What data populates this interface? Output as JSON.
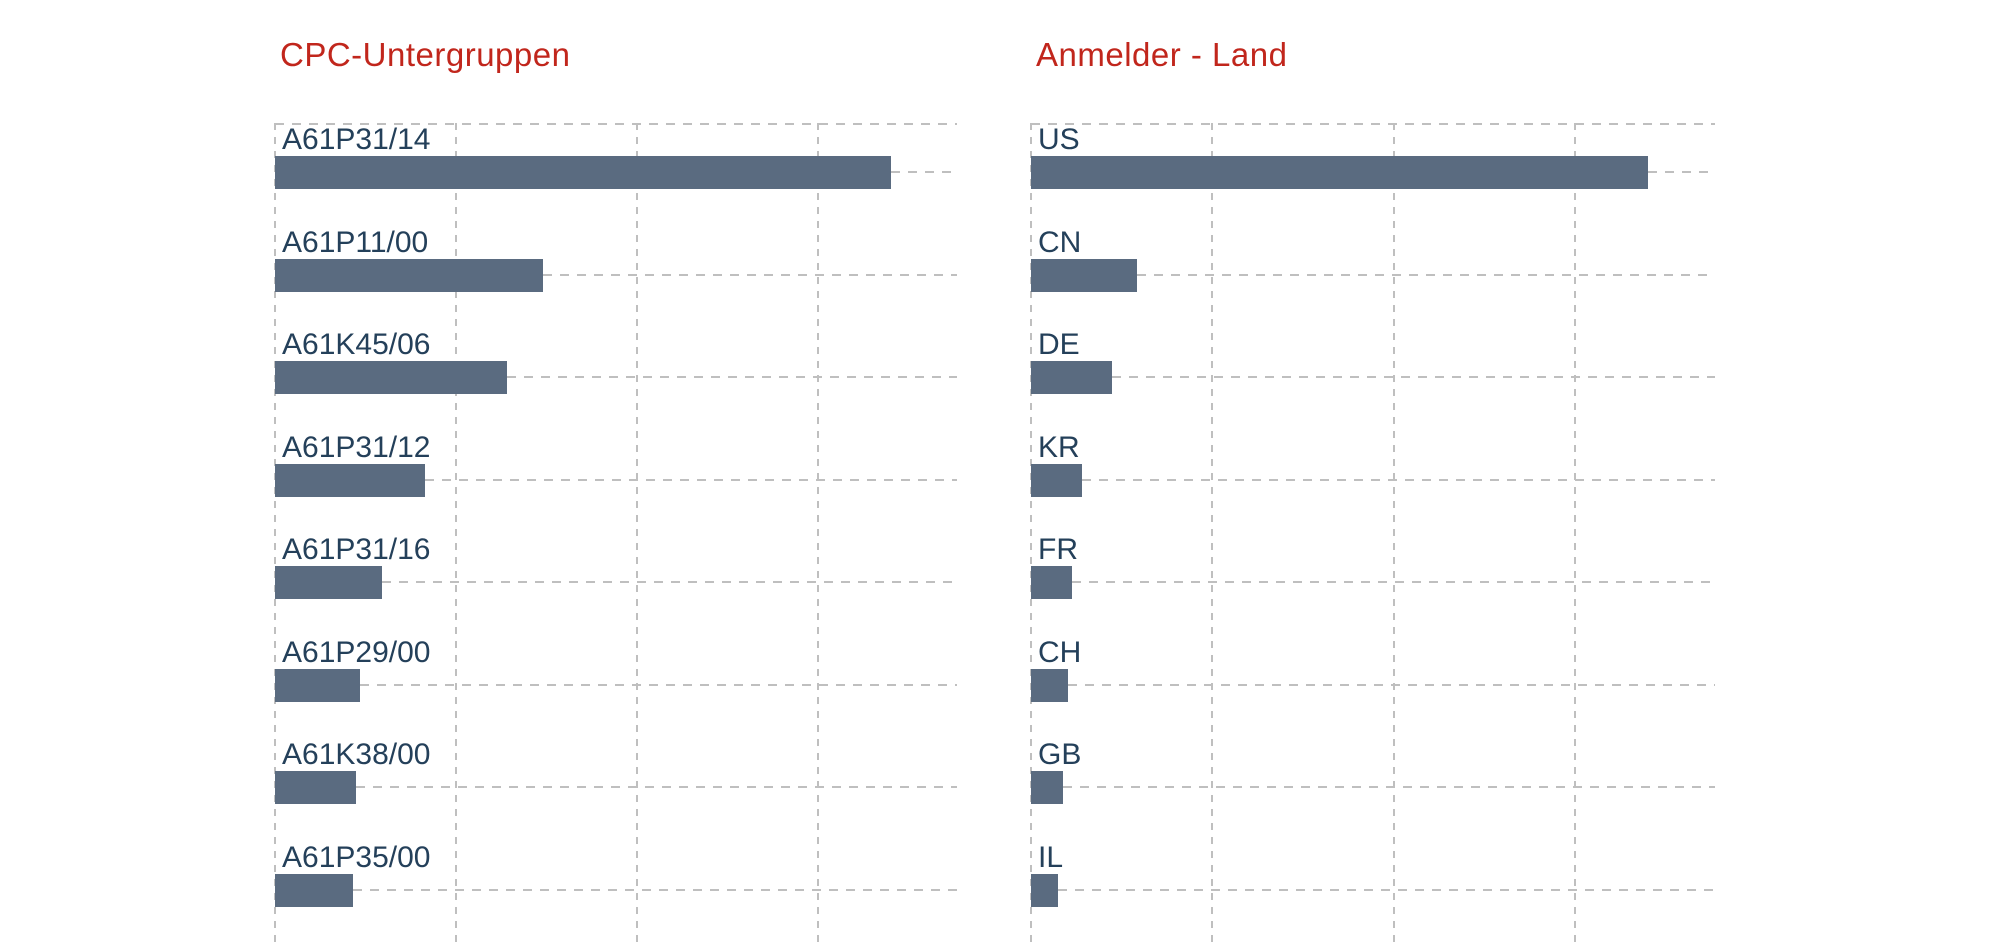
{
  "page": {
    "background_color": "#ffffff",
    "bar_color": "#5a6b80",
    "gridline_color": "#bfbfbf",
    "category_label_color": "#24405a"
  },
  "chart_data": [
    {
      "type": "bar",
      "orientation": "horizontal",
      "title": "CPC-Untergruppen",
      "title_color": "#c1261c",
      "categories": [
        "A61P31/14",
        "A61P11/00",
        "A61K45/06",
        "A61P31/12",
        "A61P31/16",
        "A61P29/00",
        "A61K38/00",
        "A61P35/00"
      ],
      "values_pct_of_axis": [
        90.3,
        39.3,
        34.0,
        22.0,
        15.7,
        12.5,
        11.9,
        11.4
      ],
      "axis": {
        "tick_labels_visible": false,
        "value_labels_visible": false,
        "range_pct": [
          0,
          100
        ],
        "vertical_gridline_pcts": [
          0,
          26.5,
          53.1,
          79.6
        ],
        "gridline_style": "dashed"
      },
      "legend": "none"
    },
    {
      "type": "bar",
      "orientation": "horizontal",
      "title": "Anmelder - Land",
      "title_color": "#c1261c",
      "categories": [
        "US",
        "CN",
        "DE",
        "KR",
        "FR",
        "CH",
        "GB",
        "IL"
      ],
      "values_pct_of_axis": [
        90.2,
        15.5,
        11.8,
        7.5,
        6.0,
        5.4,
        4.7,
        3.9
      ],
      "axis": {
        "tick_labels_visible": false,
        "value_labels_visible": false,
        "range_pct": [
          0,
          100
        ],
        "vertical_gridline_pcts": [
          0,
          26.5,
          53.1,
          79.6
        ],
        "gridline_style": "dashed"
      },
      "legend": "none"
    }
  ]
}
